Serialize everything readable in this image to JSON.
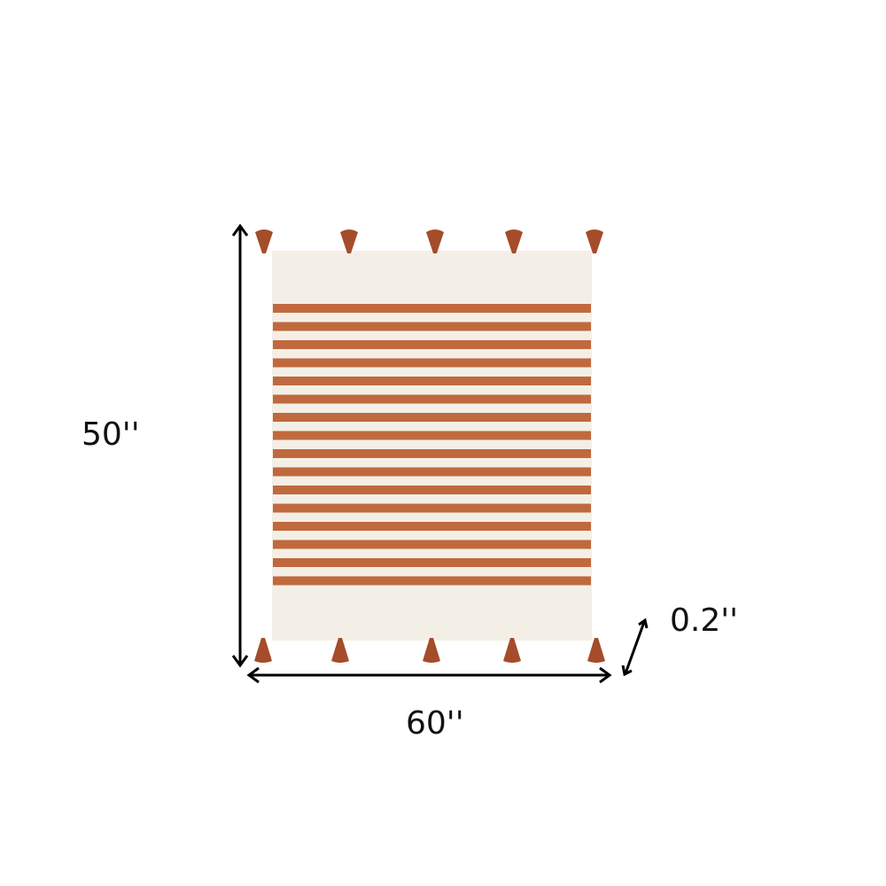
{
  "dimensions": {
    "height_label": "50''",
    "width_label": "60''",
    "depth_label": "0.2''"
  },
  "product": {
    "stripe_count": 16,
    "tassels_per_edge": 5,
    "colors": {
      "base": "#f4efe6",
      "stripe": "#c0693f",
      "tassel": "#a54c2a",
      "arrow": "#000000"
    }
  }
}
